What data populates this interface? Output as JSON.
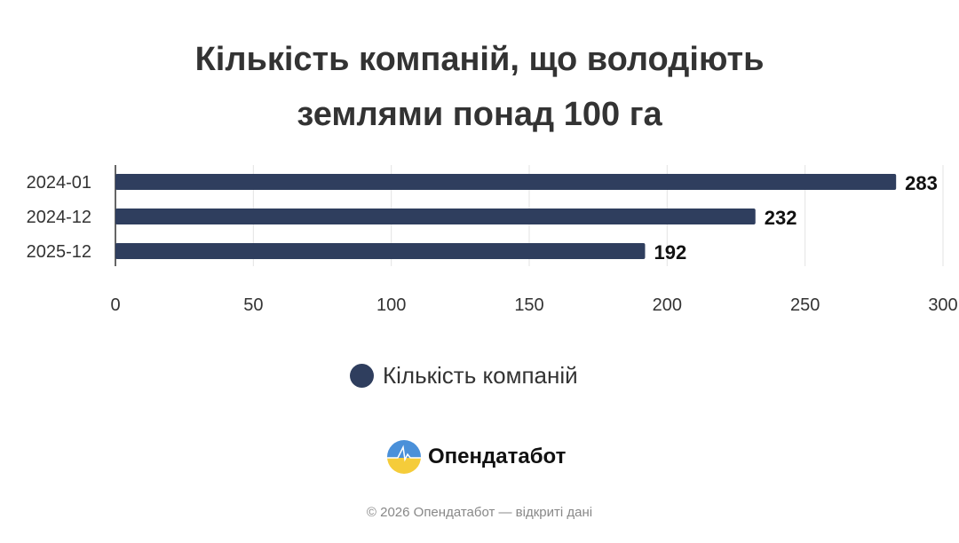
{
  "chart_data": {
    "type": "bar",
    "orientation": "horizontal",
    "title_lines": [
      "Кількість компаній, що володіють",
      "землями понад 100 га"
    ],
    "categories": [
      "2024-01",
      "2024-12",
      "2025-12"
    ],
    "series": [
      {
        "name": "Кількість компаній",
        "values": [
          283,
          232,
          192
        ],
        "color": "#2f3e5e"
      }
    ],
    "xlim": [
      0,
      300
    ],
    "xticks": [
      0,
      50,
      100,
      150,
      200,
      250,
      300
    ],
    "grid": true,
    "legend_position": "bottom"
  },
  "branding": {
    "logo_text": "Опендатабот",
    "footer": "© 2026 Опендатабот — відкриті дані"
  }
}
